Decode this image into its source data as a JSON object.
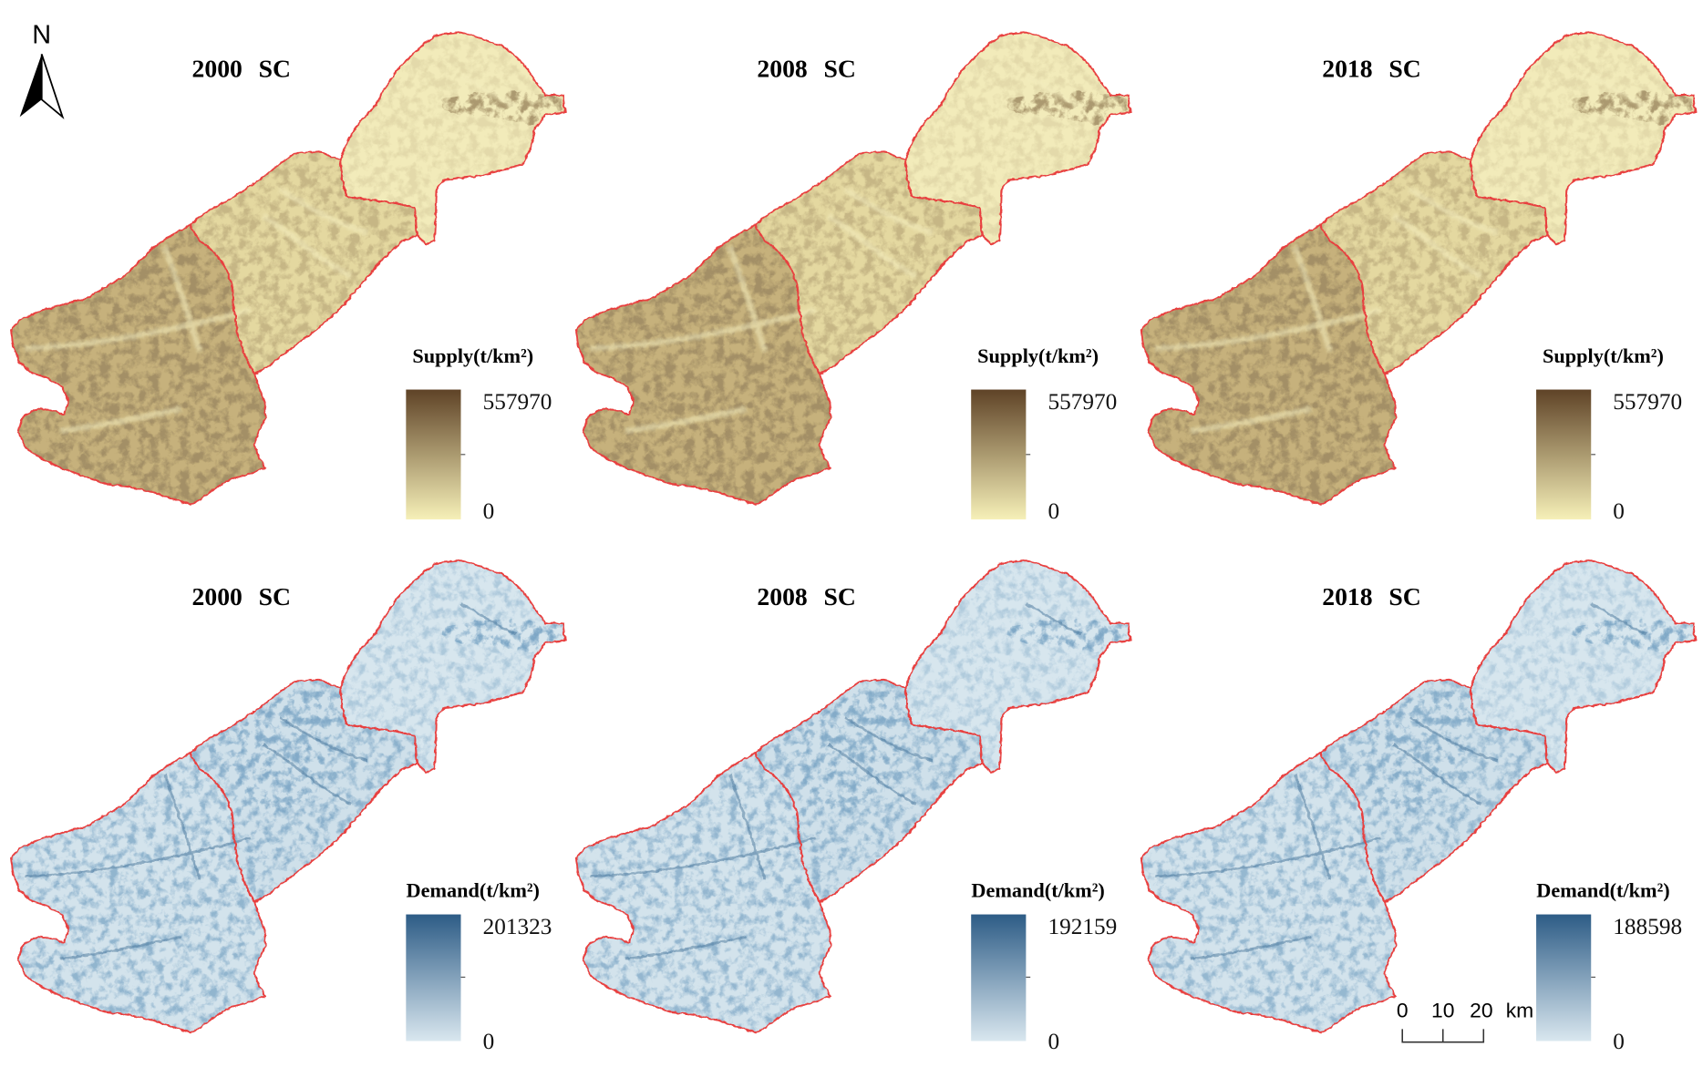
{
  "north_arrow": {
    "label": "N",
    "icon": "north-arrow-icon"
  },
  "supply_maps": [
    {
      "title": "2000 SC",
      "legend": {
        "title": "Supply(t/km²)",
        "max": "557970",
        "min": "0"
      }
    },
    {
      "title": "2008 SC",
      "legend": {
        "title": "Supply(t/km²)",
        "max": "557970",
        "min": "0"
      }
    },
    {
      "title": "2018 SC",
      "legend": {
        "title": "Supply(t/km²)",
        "max": "557970",
        "min": "0"
      }
    }
  ],
  "demand_maps": [
    {
      "title": "2000 SC",
      "legend": {
        "title": "Demand(t/km²)",
        "max": "201323",
        "min": "0"
      }
    },
    {
      "title": "2008 SC",
      "legend": {
        "title": "Demand(t/km²)",
        "max": "192159",
        "min": "0"
      }
    },
    {
      "title": "2018 SC",
      "legend": {
        "title": "Demand(t/km²)",
        "max": "188598",
        "min": "0"
      }
    }
  ],
  "scale_bar": {
    "ticks": [
      "0",
      "10",
      "20"
    ],
    "unit": "km"
  },
  "colors": {
    "boundary": "#e8413f",
    "supply_high": "#5f4327",
    "supply_low": "#f6f0b8",
    "demand_high": "#2d5c86",
    "demand_low": "#d9e7ef"
  }
}
